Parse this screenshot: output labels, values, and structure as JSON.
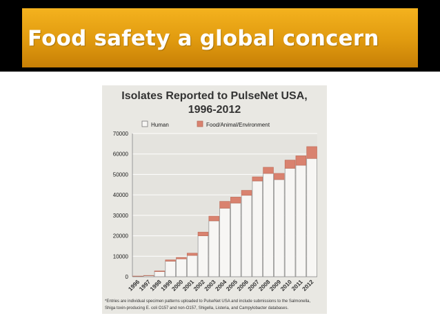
{
  "slide": {
    "title": "Food safety a global concern"
  },
  "chart_data": {
    "type": "bar",
    "stacked": true,
    "title": "Isolates Reported to PulseNet USA,",
    "subtitle": "1996-2012",
    "xlabel": "",
    "ylabel": "",
    "ylim": [
      0,
      70000
    ],
    "yticks": [
      "70000",
      "60000",
      "50000",
      "40000",
      "30000",
      "20000",
      "10000",
      "0"
    ],
    "grid": true,
    "legend_position": "top",
    "categories": [
      "1996",
      "1997",
      "1998",
      "1999",
      "2000",
      "2001",
      "2002",
      "2003",
      "2004",
      "2005",
      "2006",
      "2007",
      "2008",
      "2009",
      "2010",
      "2011",
      "2012"
    ],
    "series": [
      {
        "name": "Human",
        "color": "#f7f6f4",
        "values": [
          200,
          500,
          2500,
          7600,
          8700,
          10400,
          20000,
          27300,
          33500,
          36000,
          39800,
          46800,
          50500,
          47500,
          53000,
          54500,
          57800
        ]
      },
      {
        "name": "Food/Animal/Environment",
        "color": "#d9826f",
        "values": [
          100,
          100,
          300,
          600,
          700,
          1100,
          1800,
          2300,
          3300,
          2900,
          2400,
          2000,
          3000,
          3000,
          4000,
          4600,
          5800
        ]
      }
    ],
    "footnote": [
      "*Entries are individual specimen patterns uploaded to PulseNet USA and include submissions to the Salmonella,",
      "Shiga toxin-producing E. coli O157 and non-O157, Shigella, Listeria, and Campylobacter databases."
    ]
  }
}
